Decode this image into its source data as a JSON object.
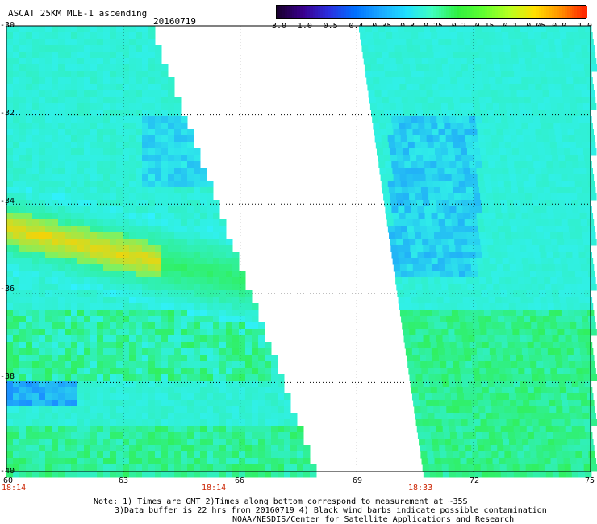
{
  "title": "ASCAT 25KM MLE-1 ascending",
  "date": "20160719",
  "colorbar": {
    "labels": [
      "-3.0",
      "-1.0",
      "-0.5",
      "-0.4",
      "-0.35",
      "-0.3",
      "-0.25",
      "-0.2",
      "-0.15",
      "-0.1",
      "-0.05",
      "0.0",
      "1.0"
    ],
    "colors": [
      "#1a0030",
      "#3a0090",
      "#2a30e0",
      "#0070ff",
      "#1aa8ff",
      "#20e0ff",
      "#40ffc0",
      "#30f040",
      "#60ff30",
      "#b8ff20",
      "#ffe000",
      "#ff9000",
      "#ff2000"
    ]
  },
  "y_axis_labels": [
    "-30",
    "-32",
    "-34",
    "-36",
    "-38",
    "-40"
  ],
  "x_axis_labels": [
    "60",
    "63",
    "66",
    "69",
    "72",
    "75"
  ],
  "time_labels": [
    "18:14",
    "18:14",
    "18:33"
  ],
  "notes": [
    "Note: 1) Times are GMT 2)Times along bottom correspond to measurement at ~35S",
    "3)Data buffer is 22 hrs from 20160719 4) Black wind barbs indicate possible contamination",
    "NOAA/NESDIS/Center for Satellite Applications and Research"
  ],
  "map": {
    "lat_range": [
      -40,
      -30
    ],
    "lon_range": [
      60,
      75
    ],
    "swath_colors": {
      "background": "#30f0e8",
      "blue": "#1a90ff",
      "green": "#30f060",
      "yellow": "#ffd000",
      "light_green": "#80f060"
    }
  }
}
